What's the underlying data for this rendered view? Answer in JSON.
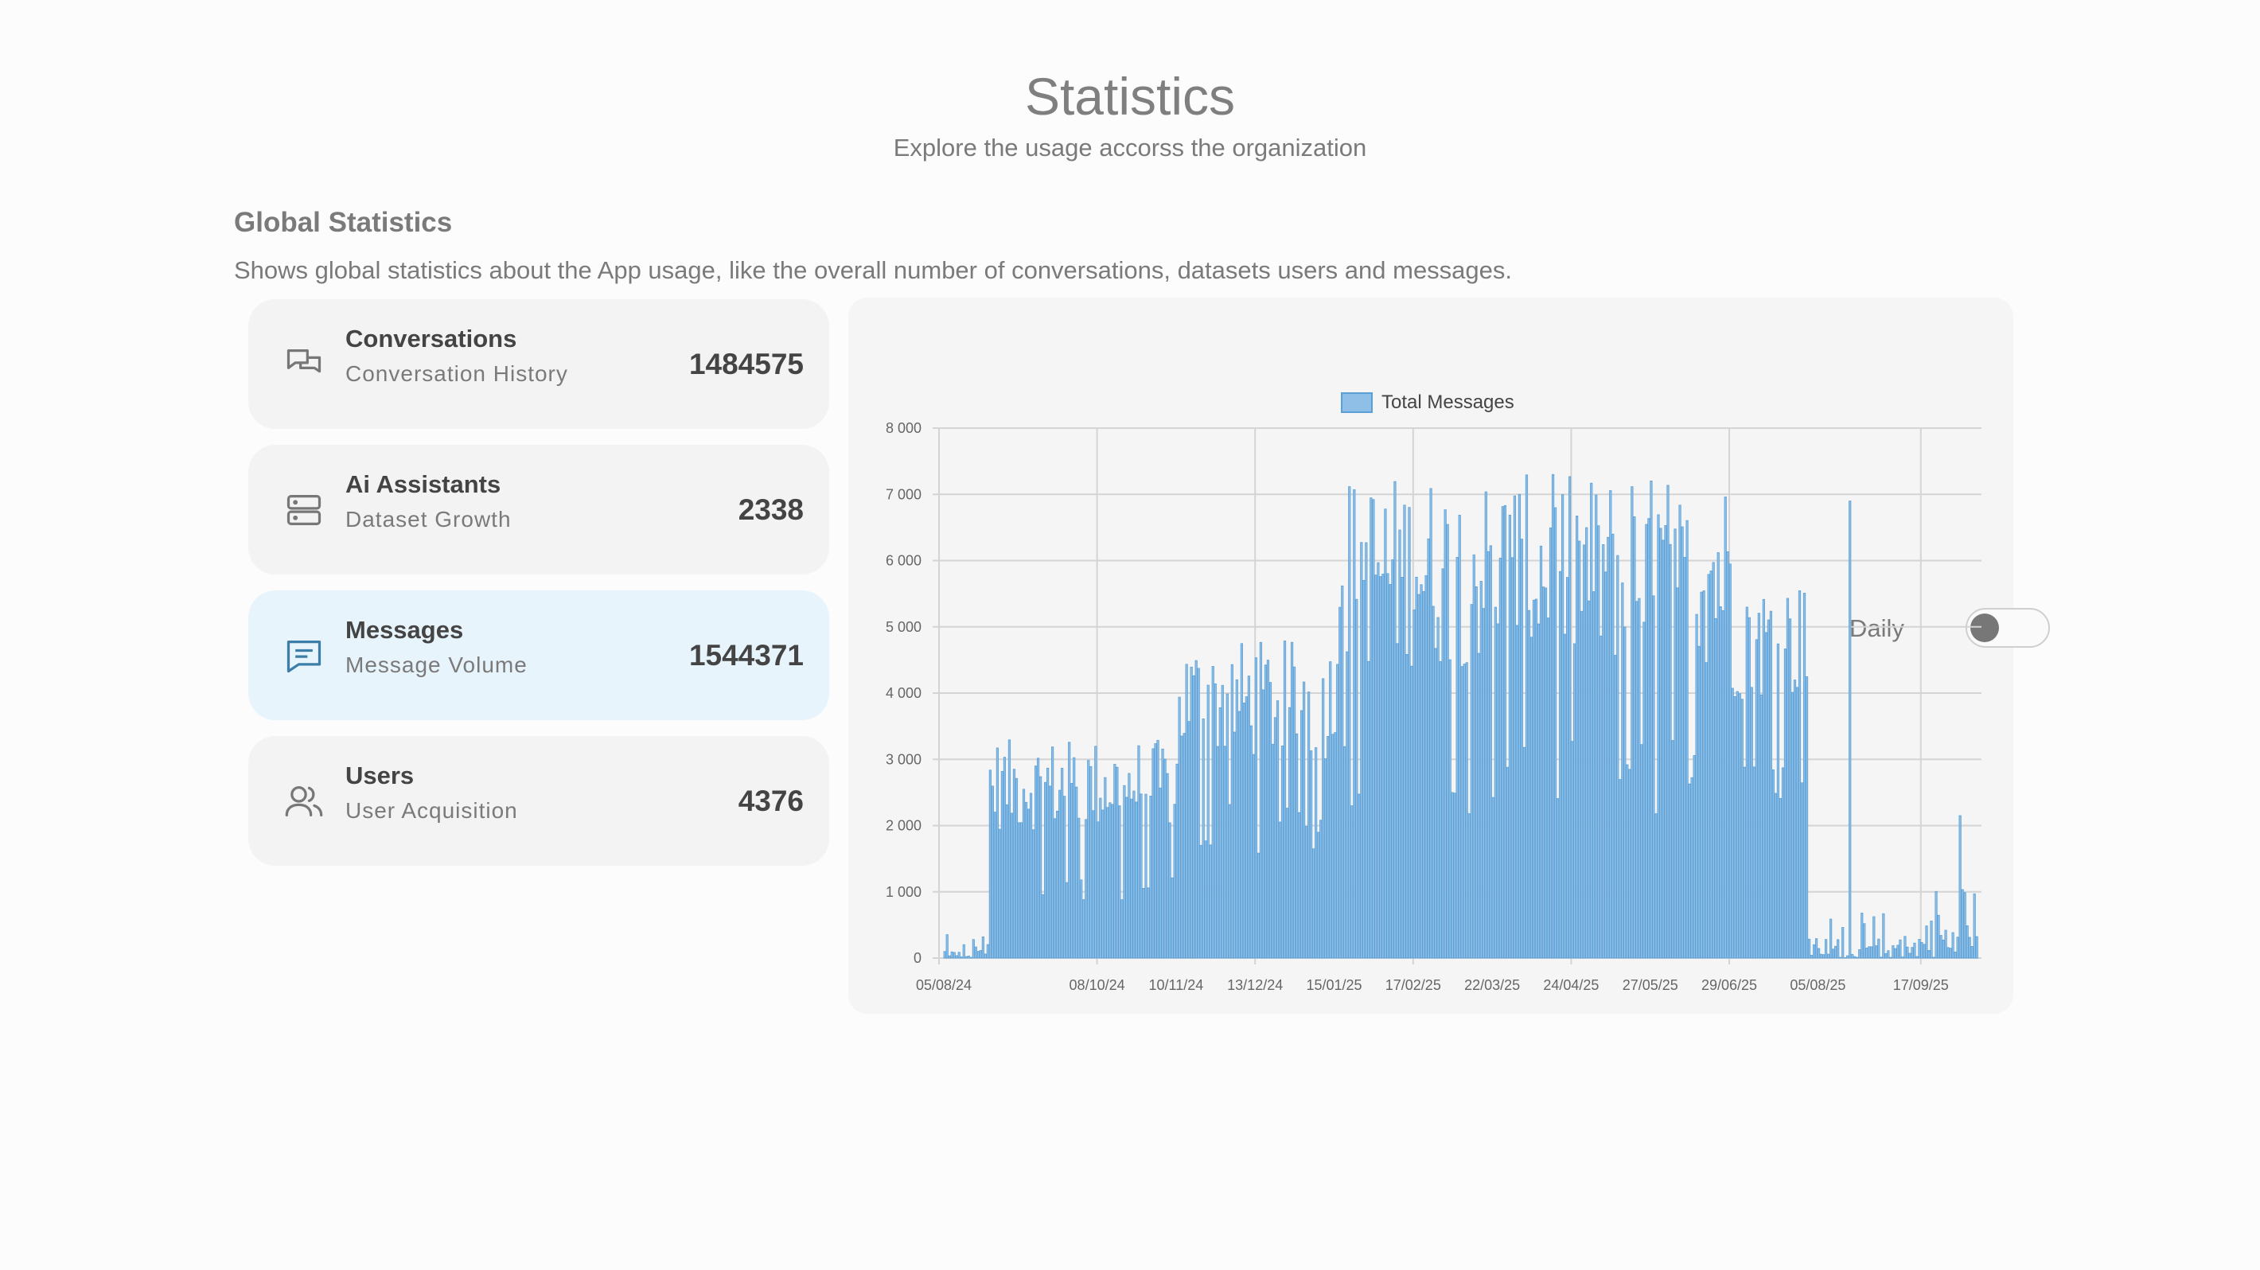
{
  "header": {
    "title": "Statistics",
    "subtitle": "Explore the usage accorss the organization"
  },
  "section": {
    "title": "Global Statistics",
    "description": "Shows global statistics about the App usage, like the overall number of conversations, datasets users and messages."
  },
  "cards": [
    {
      "title": "Conversations",
      "subtitle": "Conversation History",
      "value": "1484575",
      "icon": "chat-bubbles-icon",
      "active": false
    },
    {
      "title": "Ai Assistants",
      "subtitle": "Dataset Growth",
      "value": "2338",
      "icon": "server-icon",
      "active": false
    },
    {
      "title": "Messages",
      "subtitle": "Message Volume",
      "value": "1544371",
      "icon": "message-icon",
      "active": true
    },
    {
      "title": "Users",
      "subtitle": "User Acquisition",
      "value": "4376",
      "icon": "users-icon",
      "active": false
    }
  ],
  "toggle": {
    "label": "Daily",
    "checked": false
  },
  "colors": {
    "bar": "#8fbfe6",
    "bar_stroke": "#5a9fd6",
    "active_card": "#e8f4fc",
    "card": "#f3f3f3"
  },
  "chart_data": {
    "type": "bar",
    "series": [
      {
        "name": "Total Messages"
      }
    ],
    "ylim": [
      0,
      8000
    ],
    "yticks": [
      "8 000",
      "7 000",
      "6 000",
      "5 000",
      "4 000",
      "3 000",
      "2 000",
      "1 000",
      "0"
    ],
    "xticks": [
      "05/08/24",
      "08/10/24",
      "10/11/24",
      "13/12/24",
      "15/01/25",
      "17/02/25",
      "22/03/25",
      "24/04/25",
      "27/05/25",
      "29/06/25",
      "05/08/25",
      "17/09/25"
    ],
    "legend_position": "top",
    "grid": true,
    "segments": [
      {
        "start": "05/08/24",
        "end": "23/08/24",
        "approx_daily_messages": [
          0,
          200
        ]
      },
      {
        "start": "24/08/24",
        "end": "10/11/24",
        "approx_daily_messages": [
          800,
          3300
        ]
      },
      {
        "start": "11/11/24",
        "end": "15/01/25",
        "approx_daily_messages": [
          1500,
          4800
        ]
      },
      {
        "start": "16/01/25",
        "end": "29/06/25",
        "approx_daily_messages": [
          2000,
          7300
        ]
      },
      {
        "start": "30/06/25",
        "end": "31/07/25",
        "approx_daily_messages": [
          2400,
          5700
        ]
      },
      {
        "start": "01/08/25",
        "end": "17/09/25",
        "approx_daily_messages": [
          0,
          6900
        ]
      },
      {
        "start": "18/09/25",
        "end": "10/10/25",
        "approx_daily_messages": [
          0,
          2200
        ]
      }
    ],
    "peaks": [
      {
        "date": "16/04/25",
        "value": 7300
      },
      {
        "date": "02/04/25",
        "value": 7000
      },
      {
        "date": "18/08/25",
        "value": 6900
      },
      {
        "date": "11/05/25",
        "value": 6400
      },
      {
        "date": "07/03/25",
        "value": 6050
      },
      {
        "date": "10/06/25",
        "value": 6050
      },
      {
        "date": "18/02/25",
        "value": 5750
      },
      {
        "date": "03/10/25",
        "value": 2150
      }
    ]
  }
}
